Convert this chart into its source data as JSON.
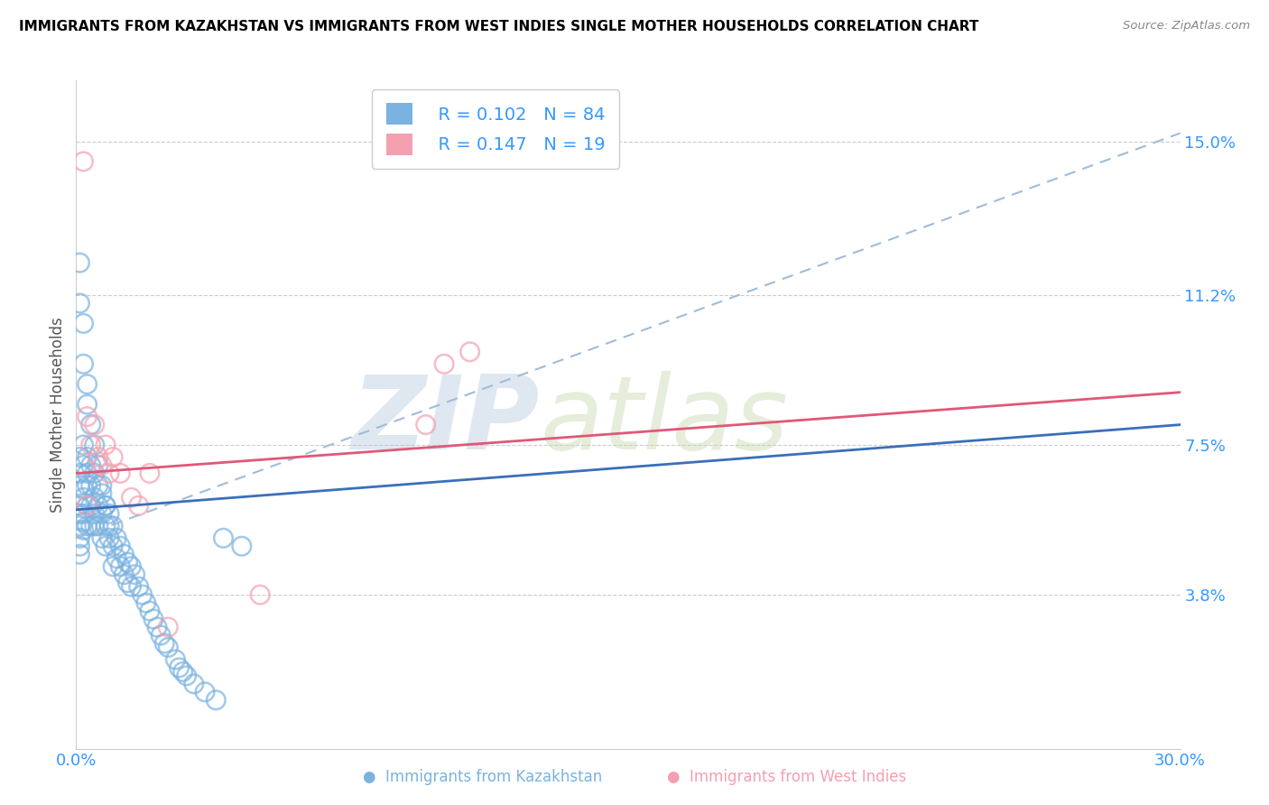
{
  "title": "IMMIGRANTS FROM KAZAKHSTAN VS IMMIGRANTS FROM WEST INDIES SINGLE MOTHER HOUSEHOLDS CORRELATION CHART",
  "source": "Source: ZipAtlas.com",
  "ylabel": "Single Mother Households",
  "xlim": [
    0.0,
    0.3
  ],
  "ylim": [
    0.0,
    0.165
  ],
  "ytick_positions": [
    0.038,
    0.075,
    0.112,
    0.15
  ],
  "ytick_labels": [
    "3.8%",
    "7.5%",
    "11.2%",
    "15.0%"
  ],
  "R_kaz": 0.102,
  "N_kaz": 84,
  "R_wi": 0.147,
  "N_wi": 19,
  "color_kaz": "#7ab3e0",
  "color_wi": "#f4a0b0",
  "line_color_kaz_solid": "#3a6fba",
  "line_color_kaz_dashed": "#a0bcd8",
  "line_color_wi": "#e05878",
  "watermark_zip": "ZIP",
  "watermark_atlas": "atlas",
  "watermark_color_zip": "#b8cde0",
  "watermark_color_atlas": "#c8d8b0",
  "legend_label_kaz": "R = 0.102   N = 84",
  "legend_label_wi": "R = 0.147   N = 19",
  "legend_color": "#3399ff",
  "kaz_x": [
    0.001,
    0.001,
    0.001,
    0.001,
    0.001,
    0.001,
    0.001,
    0.001,
    0.001,
    0.002,
    0.002,
    0.002,
    0.002,
    0.002,
    0.002,
    0.002,
    0.003,
    0.003,
    0.003,
    0.003,
    0.003,
    0.004,
    0.004,
    0.004,
    0.004,
    0.005,
    0.005,
    0.005,
    0.005,
    0.006,
    0.006,
    0.006,
    0.007,
    0.007,
    0.007,
    0.008,
    0.008,
    0.008,
    0.009,
    0.009,
    0.01,
    0.01,
    0.01,
    0.011,
    0.011,
    0.012,
    0.012,
    0.013,
    0.013,
    0.014,
    0.014,
    0.015,
    0.015,
    0.016,
    0.017,
    0.018,
    0.019,
    0.02,
    0.021,
    0.022,
    0.023,
    0.024,
    0.025,
    0.027,
    0.028,
    0.029,
    0.03,
    0.032,
    0.035,
    0.038,
    0.001,
    0.001,
    0.002,
    0.002,
    0.003,
    0.003,
    0.004,
    0.005,
    0.006,
    0.007,
    0.008,
    0.009,
    0.04,
    0.045
  ],
  "kaz_y": [
    0.068,
    0.072,
    0.058,
    0.06,
    0.065,
    0.052,
    0.055,
    0.048,
    0.05,
    0.075,
    0.07,
    0.062,
    0.058,
    0.064,
    0.054,
    0.056,
    0.072,
    0.068,
    0.065,
    0.06,
    0.055,
    0.07,
    0.065,
    0.06,
    0.055,
    0.068,
    0.062,
    0.058,
    0.055,
    0.065,
    0.06,
    0.055,
    0.063,
    0.058,
    0.052,
    0.06,
    0.055,
    0.05,
    0.058,
    0.052,
    0.055,
    0.05,
    0.045,
    0.052,
    0.047,
    0.05,
    0.045,
    0.048,
    0.043,
    0.046,
    0.041,
    0.045,
    0.04,
    0.043,
    0.04,
    0.038,
    0.036,
    0.034,
    0.032,
    0.03,
    0.028,
    0.026,
    0.025,
    0.022,
    0.02,
    0.019,
    0.018,
    0.016,
    0.014,
    0.012,
    0.12,
    0.11,
    0.095,
    0.105,
    0.09,
    0.085,
    0.08,
    0.075,
    0.07,
    0.065,
    0.06,
    0.055,
    0.052,
    0.05
  ],
  "wi_x": [
    0.003,
    0.004,
    0.005,
    0.006,
    0.007,
    0.008,
    0.009,
    0.01,
    0.012,
    0.015,
    0.017,
    0.02,
    0.1,
    0.107,
    0.095,
    0.05,
    0.002,
    0.003,
    0.025
  ],
  "wi_y": [
    0.082,
    0.075,
    0.08,
    0.072,
    0.07,
    0.075,
    0.068,
    0.072,
    0.068,
    0.062,
    0.06,
    0.068,
    0.095,
    0.098,
    0.08,
    0.038,
    0.145,
    0.06,
    0.03
  ],
  "kaz_line_x0": 0.0,
  "kaz_line_x1": 0.3,
  "kaz_line_y0_solid": 0.059,
  "kaz_line_y1_solid": 0.08,
  "kaz_line_y0_dashed": 0.052,
  "kaz_line_y1_dashed": 0.152,
  "wi_line_x0": 0.0,
  "wi_line_x1": 0.3,
  "wi_line_y0": 0.068,
  "wi_line_y1": 0.088
}
